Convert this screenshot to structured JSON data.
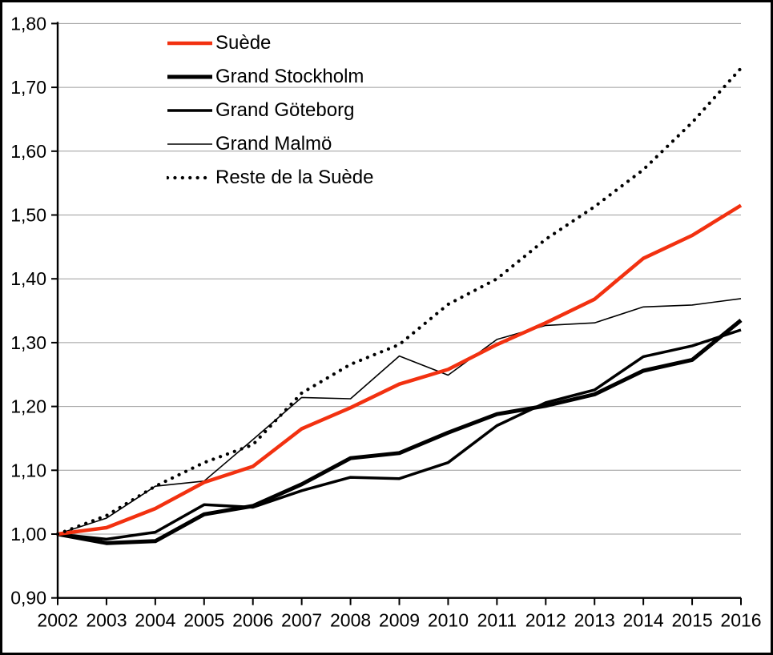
{
  "chart_data": {
    "type": "line",
    "title": "",
    "xlabel": "",
    "ylabel": "",
    "x": [
      2002,
      2003,
      2004,
      2005,
      2006,
      2007,
      2008,
      2009,
      2010,
      2011,
      2012,
      2013,
      2014,
      2015,
      2016
    ],
    "x_tick_labels": [
      "2002",
      "2003",
      "2004",
      "2005",
      "2006",
      "2007",
      "2008",
      "2009",
      "2010",
      "2011",
      "2012",
      "2013",
      "2014",
      "2015",
      "2016"
    ],
    "y_tick_labels": [
      "0,90",
      "1,00",
      "1,10",
      "1,20",
      "1,30",
      "1,40",
      "1,50",
      "1,60",
      "1,70",
      "1,80"
    ],
    "y_tick_values": [
      0.9,
      1.0,
      1.1,
      1.2,
      1.3,
      1.4,
      1.5,
      1.6,
      1.7,
      1.8
    ],
    "ylim": [
      0.9,
      1.8
    ],
    "grid": true,
    "legend_position": "top-left-inside",
    "series": [
      {
        "name": "Suède",
        "color": "#f23110",
        "style": "solid",
        "width": 4.5,
        "values": [
          1.0,
          1.01,
          1.04,
          1.081,
          1.106,
          1.165,
          1.198,
          1.235,
          1.258,
          1.297,
          1.331,
          1.368,
          1.432,
          1.468,
          1.515
        ]
      },
      {
        "name": "Grand Stockholm",
        "color": "#000000",
        "style": "solid",
        "width": 5,
        "values": [
          1.0,
          0.986,
          0.989,
          1.031,
          1.044,
          1.078,
          1.119,
          1.127,
          1.159,
          1.188,
          1.201,
          1.219,
          1.256,
          1.273,
          1.335
        ]
      },
      {
        "name": "Grand Göteborg",
        "color": "#000000",
        "style": "solid",
        "width": 3.5,
        "values": [
          1.0,
          0.992,
          1.003,
          1.046,
          1.042,
          1.068,
          1.089,
          1.087,
          1.112,
          1.17,
          1.206,
          1.226,
          1.278,
          1.295,
          1.32
        ]
      },
      {
        "name": "Grand Malmö",
        "color": "#000000",
        "style": "solid",
        "width": 1.6,
        "values": [
          1.0,
          1.025,
          1.075,
          1.083,
          1.148,
          1.214,
          1.212,
          1.279,
          1.249,
          1.305,
          1.327,
          1.331,
          1.356,
          1.359,
          1.369
        ]
      },
      {
        "name": "Reste de la Suède",
        "color": "#000000",
        "style": "dotted",
        "width": 4.2,
        "values": [
          1.0,
          1.029,
          1.075,
          1.112,
          1.14,
          1.221,
          1.266,
          1.297,
          1.36,
          1.4,
          1.462,
          1.513,
          1.571,
          1.645,
          1.73
        ]
      }
    ],
    "draw_order": [
      3,
      2,
      1,
      0,
      4
    ]
  },
  "layout_colors": {
    "grid": "#9c9c9c",
    "axis": "#000000",
    "text": "#000000",
    "background": "#ffffff",
    "frame_border": "#000000"
  }
}
